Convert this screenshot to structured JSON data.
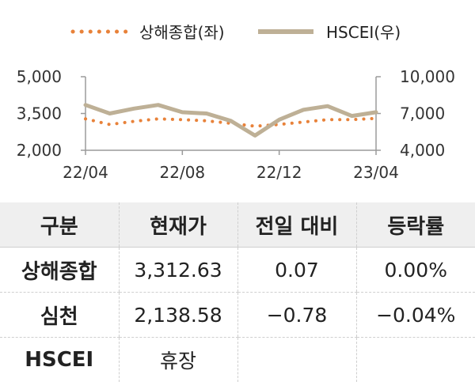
{
  "chart_data": {
    "type": "line",
    "x_ticks": [
      "22/04",
      "22/08",
      "22/12",
      "23/04"
    ],
    "y_left": {
      "ticks": [
        "5,000",
        "3,500",
        "2,000"
      ],
      "range": [
        2000,
        5000
      ]
    },
    "y_right": {
      "ticks": [
        "10,000",
        "7,000",
        "4,000"
      ],
      "range": [
        4000,
        10000
      ]
    },
    "series": [
      {
        "name": "상해종합(좌)",
        "axis": "left",
        "style": "dotted",
        "color": "#E8823A",
        "x": [
          "22/04",
          "22/05",
          "22/06",
          "22/07",
          "22/08",
          "22/09",
          "22/10",
          "22/11",
          "22/12",
          "23/01",
          "23/02",
          "23/03",
          "23/04"
        ],
        "values": [
          3280,
          3050,
          3180,
          3280,
          3250,
          3200,
          3100,
          2980,
          3050,
          3150,
          3250,
          3250,
          3300
        ]
      },
      {
        "name": "HSCEI(우)",
        "axis": "right",
        "style": "solid",
        "color": "#BEB096",
        "x": [
          "22/04",
          "22/05",
          "22/06",
          "22/07",
          "22/08",
          "22/09",
          "22/10",
          "22/11",
          "22/12",
          "23/01",
          "23/02",
          "23/03",
          "23/04"
        ],
        "values": [
          7700,
          7000,
          7400,
          7700,
          7100,
          7000,
          6400,
          5200,
          6500,
          7300,
          7600,
          6800,
          7100
        ]
      }
    ],
    "legend_position": "top"
  },
  "legend": [
    {
      "label": "상해종합(좌)",
      "color": "#E8823A",
      "style": "dotted"
    },
    {
      "label": "HSCEI(우)",
      "color": "#BEB096",
      "style": "solid"
    }
  ],
  "table": {
    "headers": [
      "구분",
      "현재가",
      "전일 대비",
      "등락률"
    ],
    "rows": [
      [
        "상해종합",
        "3,312.63",
        "0.07",
        "0.00%"
      ],
      [
        "심천",
        "2,138.58",
        "−0.78",
        "−0.04%"
      ],
      [
        "HSCEI",
        "휴장",
        "",
        ""
      ]
    ]
  }
}
